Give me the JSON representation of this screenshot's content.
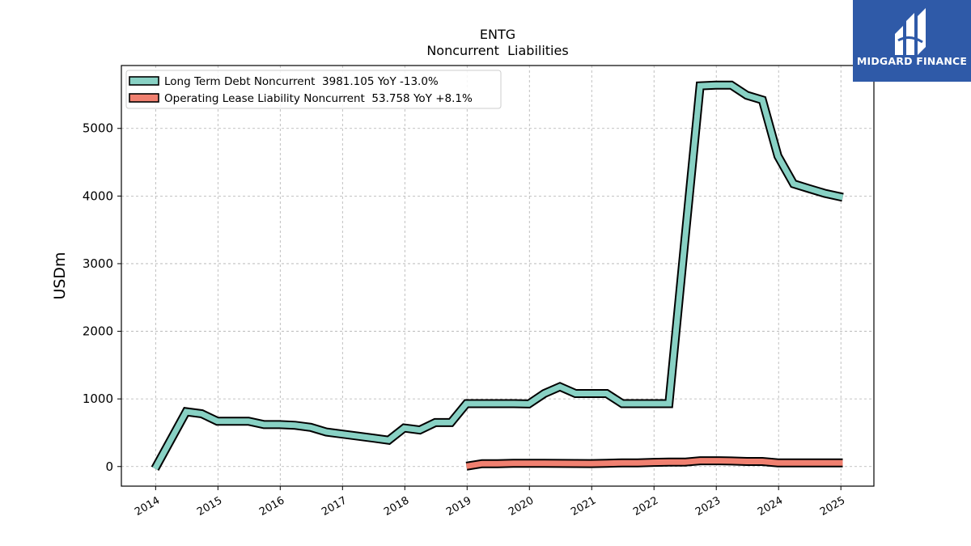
{
  "logo": {
    "text": "MIDGARD FINANCE",
    "icon": "midgard-mark-icon",
    "background": "#2f5aa8"
  },
  "chart_data": {
    "type": "line",
    "title": "ENTG",
    "subtitle": "Noncurrent  Liabilities",
    "xlabel": "",
    "ylabel": "USDm",
    "xlim": [
      2013.45,
      2025.53
    ],
    "ylim": [
      -290,
      5930
    ],
    "x_ticks": [
      "2014",
      "2015",
      "2016",
      "2017",
      "2018",
      "2019",
      "2020",
      "2021",
      "2022",
      "2023",
      "2024",
      "2025"
    ],
    "y_ticks": [
      0,
      1000,
      2000,
      3000,
      4000,
      5000
    ],
    "grid": true,
    "legend_position": "top-left",
    "series": [
      {
        "name": "Long Term Debt Noncurrent  3981.105 YoY -13.0%",
        "color": "#88d1c4",
        "x": [
          2013.99,
          2014.49,
          2014.74,
          2014.99,
          2015.24,
          2015.49,
          2015.74,
          2015.99,
          2016.24,
          2016.49,
          2016.74,
          2016.99,
          2017.24,
          2017.49,
          2017.74,
          2017.99,
          2018.24,
          2018.49,
          2018.74,
          2018.99,
          2019.24,
          2019.49,
          2019.74,
          2019.99,
          2020.24,
          2020.49,
          2020.74,
          2020.99,
          2021.24,
          2021.49,
          2021.74,
          2021.99,
          2022.24,
          2022.49,
          2022.74,
          2022.99,
          2023.24,
          2023.49,
          2023.74,
          2023.99,
          2024.24,
          2024.49,
          2024.74,
          2025.03
        ],
        "y": [
          -30,
          810,
          780,
          670,
          670,
          670,
          620,
          620,
          610,
          580,
          510,
          480,
          450,
          420,
          390,
          570,
          540,
          650,
          650,
          930,
          930,
          930,
          930,
          925,
          1080,
          1180,
          1080,
          1080,
          1080,
          930,
          930,
          930,
          930,
          3300,
          5630,
          5640,
          5640,
          5490,
          5420,
          4590,
          4180,
          4110,
          4040,
          3981.105
        ]
      },
      {
        "name": "Operating Lease Liability Noncurrent  53.758 YoY +8.1%",
        "color": "#f08070",
        "x": [
          2018.99,
          2019.24,
          2019.49,
          2019.74,
          2019.99,
          2020.24,
          2020.49,
          2020.74,
          2020.99,
          2021.24,
          2021.49,
          2021.74,
          2021.99,
          2022.24,
          2022.49,
          2022.74,
          2022.99,
          2023.24,
          2023.49,
          2023.74,
          2023.99,
          2024.24,
          2024.49,
          2024.74,
          2025.03
        ],
        "y": [
          5,
          42,
          42,
          48,
          48,
          48,
          46,
          45,
          44,
          48,
          55,
          55,
          62,
          65,
          65,
          85,
          85,
          82,
          75,
          75,
          55,
          55,
          53,
          55,
          53.758
        ]
      }
    ]
  }
}
